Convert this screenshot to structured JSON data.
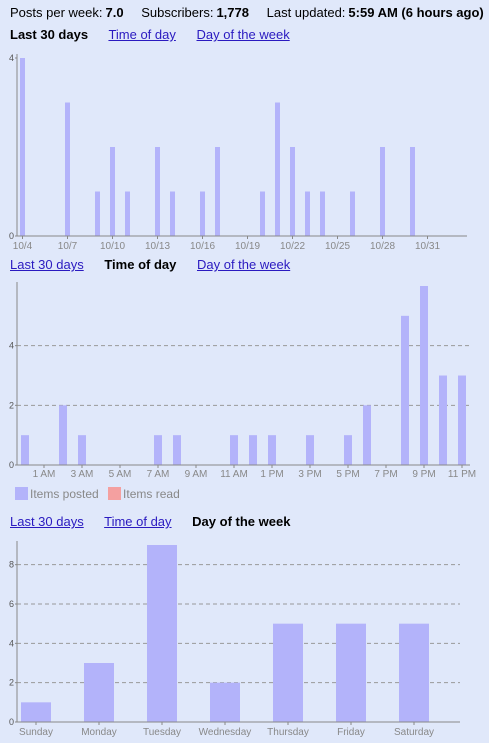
{
  "stats": {
    "posts_label": "Posts per week:",
    "posts_value": "7.0",
    "subs_label": "Subscribers:",
    "subs_value": "1,778",
    "updated_label": "Last updated:",
    "updated_value": "5:59 AM (6 hours ago)"
  },
  "tabs": {
    "last30": "Last 30 days",
    "time": "Time of day",
    "dow": "Day of the week"
  },
  "legend": {
    "posted": "Items posted",
    "read": "Items read",
    "posted_color": "#b3b3fa",
    "read_color": "#f4a0a0"
  },
  "colors": {
    "bar": "#b3b3fa",
    "background": "#e0e8fa",
    "axis": "#888888",
    "grid": "#999999"
  },
  "chart_data": [
    {
      "type": "bar",
      "title": "",
      "xlabel": "",
      "ylabel": "",
      "ylim": [
        0,
        4
      ],
      "yticks": [
        0,
        4
      ],
      "grid": false,
      "categories": [
        "10/4",
        "10/5",
        "10/6",
        "10/7",
        "10/8",
        "10/9",
        "10/10",
        "10/11",
        "10/12",
        "10/13",
        "10/14",
        "10/15",
        "10/16",
        "10/17",
        "10/18",
        "10/19",
        "10/20",
        "10/21",
        "10/22",
        "10/23",
        "10/24",
        "10/25",
        "10/26",
        "10/27",
        "10/28",
        "10/29",
        "10/30",
        "10/31",
        "11/1"
      ],
      "tick_labels": [
        "10/4",
        "10/7",
        "10/10",
        "10/13",
        "10/16",
        "10/19",
        "10/22",
        "10/25",
        "10/28",
        "10/31"
      ],
      "values": [
        4,
        0,
        0,
        3,
        0,
        1,
        2,
        1,
        0,
        2,
        1,
        0,
        1,
        2,
        0,
        0,
        1,
        3,
        2,
        1,
        1,
        0,
        1,
        0,
        2,
        0,
        2,
        0,
        0
      ]
    },
    {
      "type": "bar",
      "title": "",
      "xlabel": "",
      "ylabel": "",
      "ylim": [
        0,
        6
      ],
      "yticks": [
        0,
        2,
        4
      ],
      "grid": true,
      "categories": [
        "12 AM",
        "1 AM",
        "2 AM",
        "3 AM",
        "4 AM",
        "5 AM",
        "6 AM",
        "7 AM",
        "8 AM",
        "9 AM",
        "10 AM",
        "11 AM",
        "12 PM",
        "1 PM",
        "2 PM",
        "3 PM",
        "4 PM",
        "5 PM",
        "6 PM",
        "7 PM",
        "8 PM",
        "9 PM",
        "10 PM",
        "11 PM"
      ],
      "tick_labels": [
        "1 AM",
        "3 AM",
        "5 AM",
        "7 AM",
        "9 AM",
        "11 AM",
        "1 PM",
        "3 PM",
        "5 PM",
        "7 PM",
        "9 PM",
        "11 PM"
      ],
      "values": [
        1,
        0,
        2,
        1,
        0,
        0,
        0,
        1,
        1,
        0,
        0,
        1,
        1,
        1,
        0,
        1,
        0,
        1,
        2,
        0,
        5,
        6,
        3,
        3
      ]
    },
    {
      "type": "bar",
      "title": "",
      "xlabel": "",
      "ylabel": "",
      "ylim": [
        0,
        9
      ],
      "yticks": [
        0,
        2,
        4,
        6,
        8
      ],
      "grid": true,
      "categories": [
        "Sunday",
        "Monday",
        "Tuesday",
        "Wednesday",
        "Thursday",
        "Friday",
        "Saturday"
      ],
      "tick_labels": [
        "Sunday",
        "Monday",
        "Tuesday",
        "Wednesday",
        "Thursday",
        "Friday",
        "Saturday"
      ],
      "values": [
        1,
        3,
        9,
        2,
        5,
        5,
        5
      ]
    }
  ]
}
